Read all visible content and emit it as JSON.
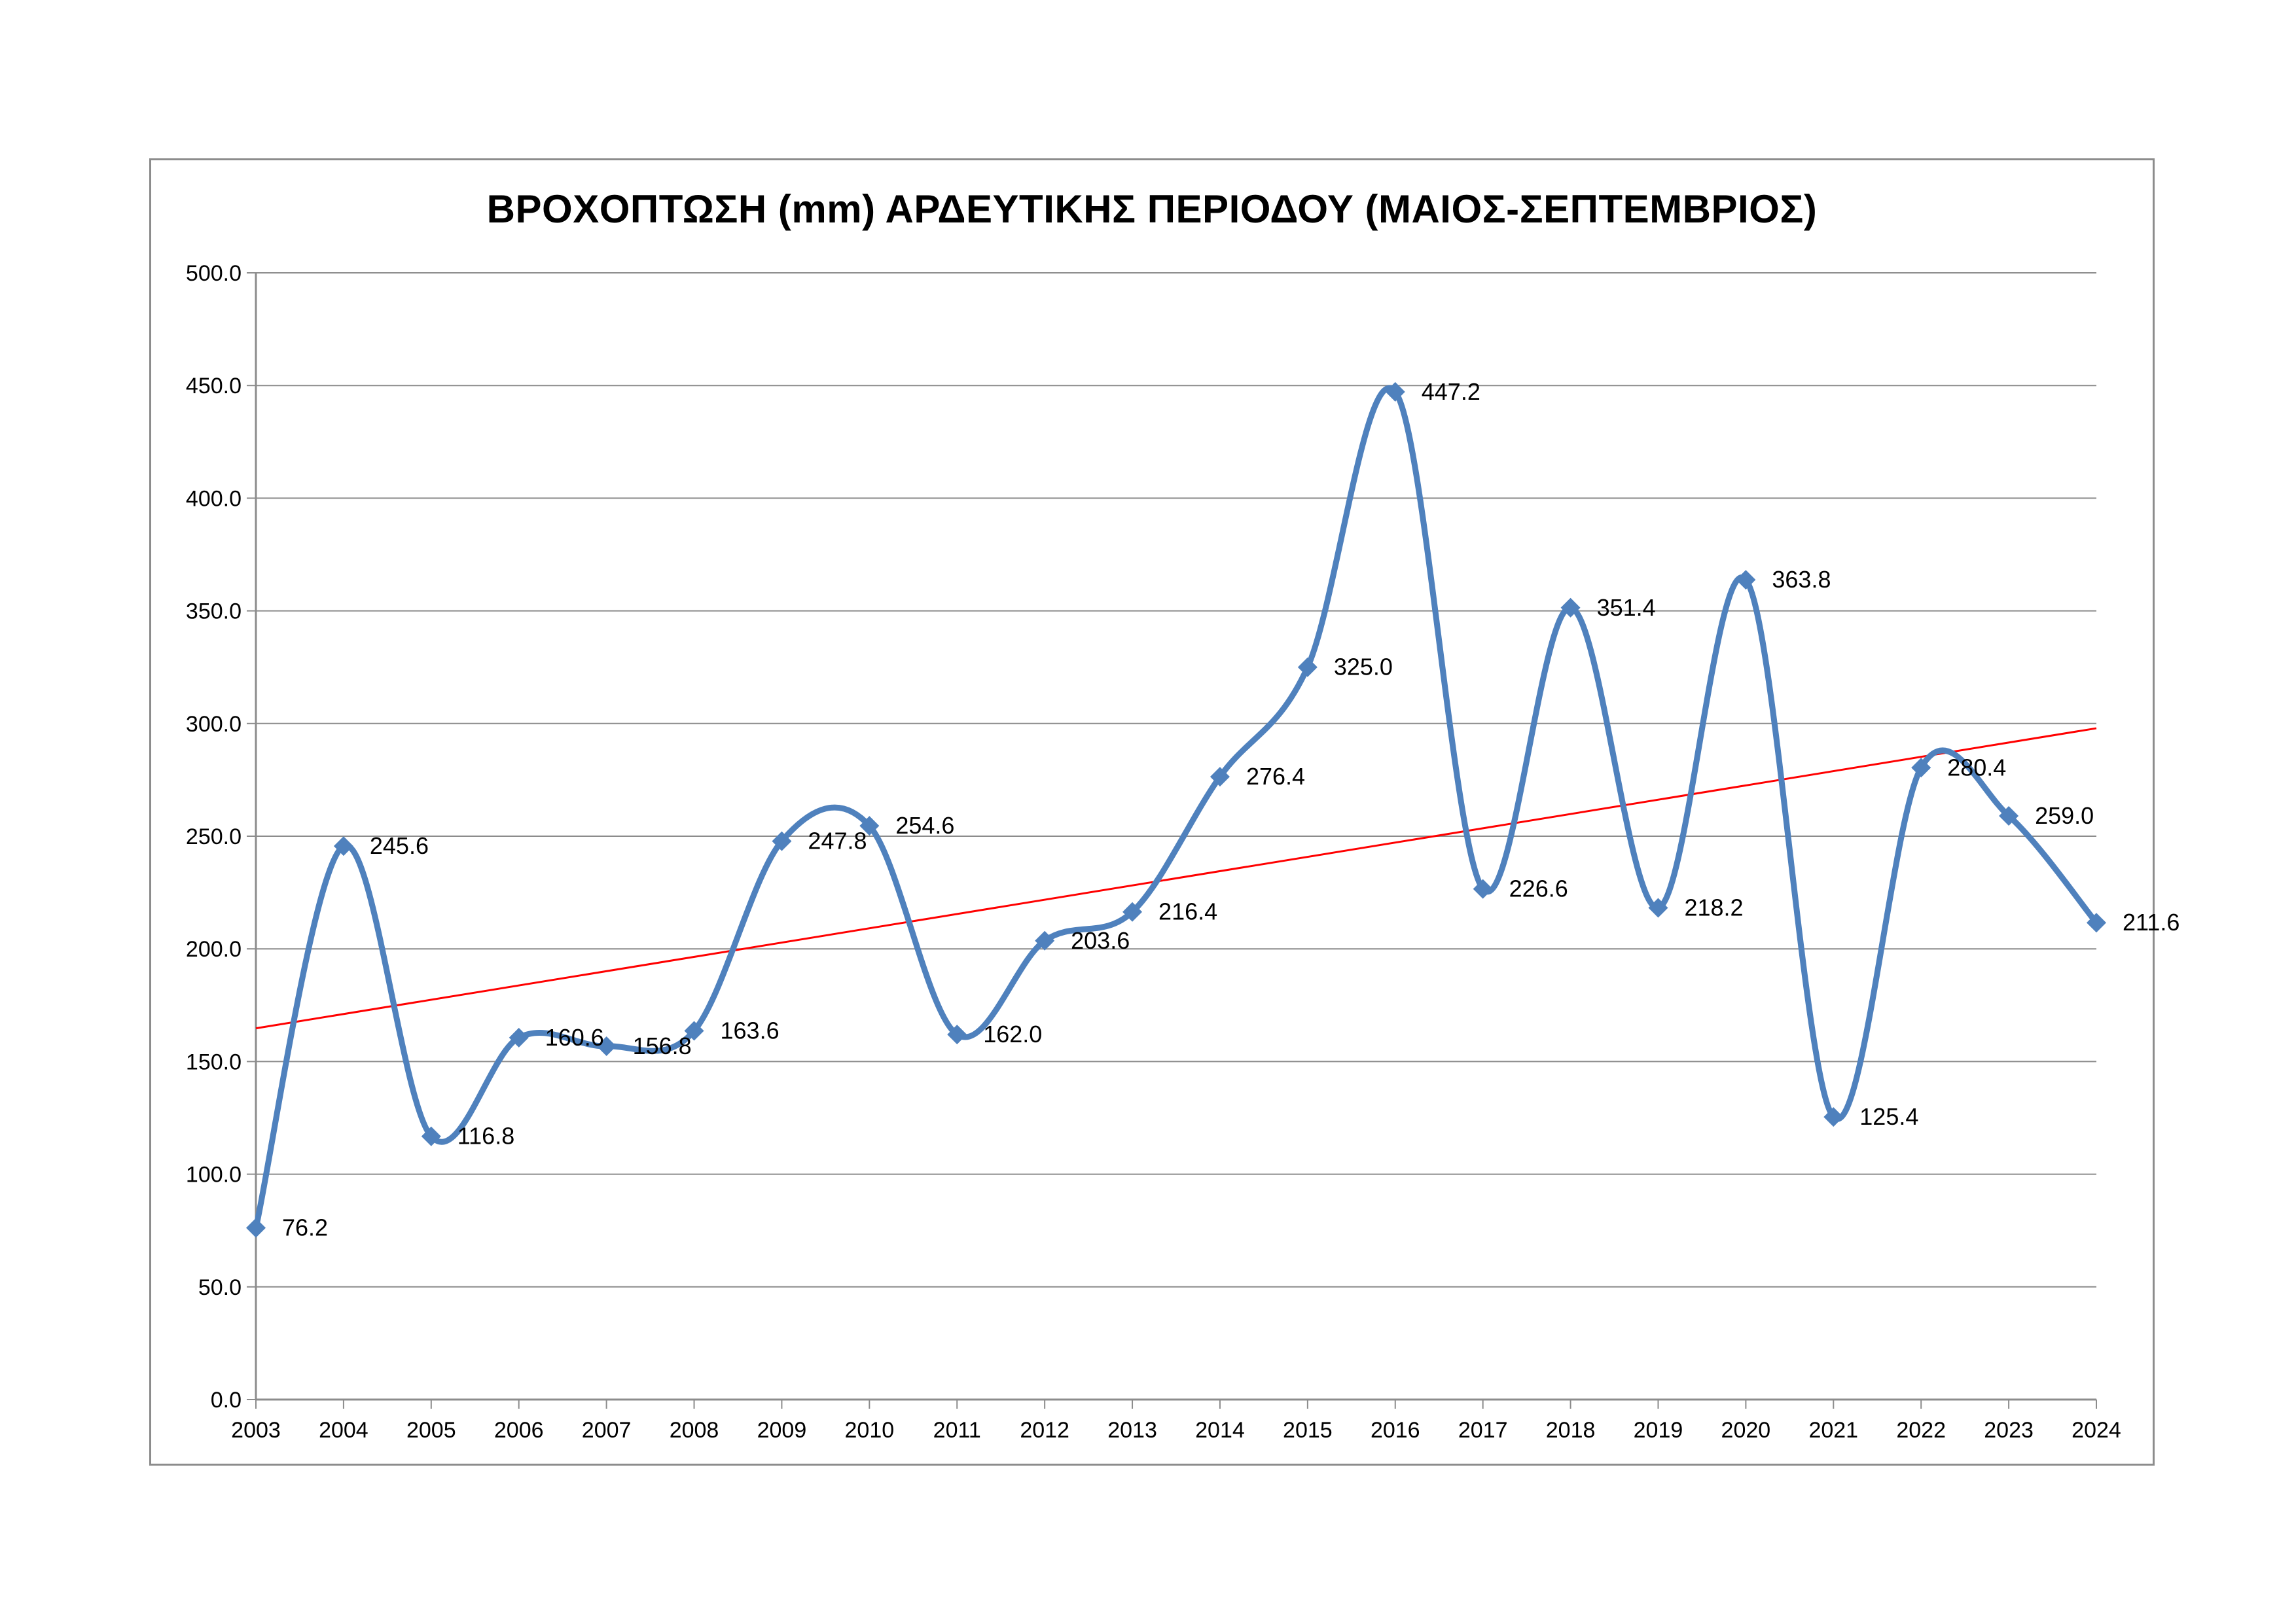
{
  "chart_data": {
    "type": "line",
    "title": "ΒΡΟΧΟΠΤΩΣΗ (mm) ΑΡΔΕΥΤΙΚΗΣ ΠΕΡΙΟΔΟΥ (ΜΑΙΟΣ-ΣΕΠΤΕΜΒΡΙΟΣ)",
    "categories": [
      "2003",
      "2004",
      "2005",
      "2006",
      "2007",
      "2008",
      "2009",
      "2010",
      "2011",
      "2012",
      "2013",
      "2014",
      "2015",
      "2016",
      "2017",
      "2018",
      "2019",
      "2020",
      "2021",
      "2022",
      "2023",
      "2024"
    ],
    "values": [
      76.2,
      245.6,
      116.8,
      160.6,
      156.8,
      163.6,
      247.8,
      254.6,
      162.0,
      203.6,
      216.4,
      276.4,
      325.0,
      447.2,
      226.6,
      351.4,
      218.2,
      363.8,
      125.4,
      280.4,
      259.0,
      211.6
    ],
    "value_labels": [
      "76.2",
      "245.6",
      "116.8",
      "160.6",
      "156.8",
      "163.6",
      "247.8",
      "254.6",
      "162.0",
      "203.6",
      "216.4",
      "276.4",
      "325.0",
      "447.2",
      "226.6",
      "351.4",
      "218.2",
      "363.8",
      "125.4",
      "280.4",
      "259.0",
      "211.6"
    ],
    "ylim": [
      0,
      500
    ],
    "y_ticks": [
      "0.0",
      "50.0",
      "100.0",
      "150.0",
      "200.0",
      "250.0",
      "300.0",
      "350.0",
      "400.0",
      "450.0",
      "500.0"
    ],
    "grid": true,
    "smoothed": true,
    "trendline": "linear",
    "colors": {
      "series": "#4f81bd",
      "marker": "#4f81bd",
      "trendline": "#ff0000",
      "grid": "#8c8c8c",
      "axis": "#8c8c8c"
    }
  }
}
